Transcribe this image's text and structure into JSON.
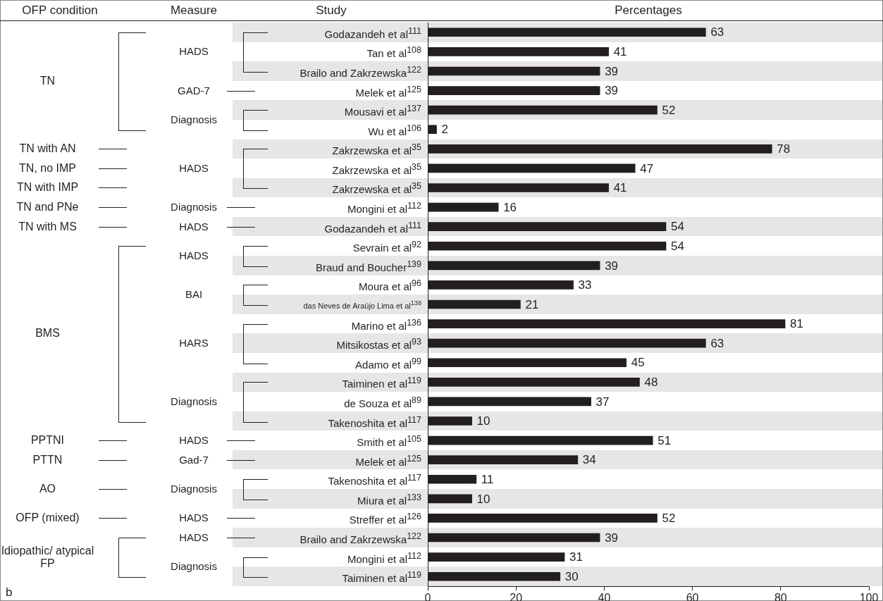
{
  "chart_data": {
    "type": "bar",
    "orientation": "horizontal",
    "xlabel": "Percentages",
    "categories": [
      "Godazandeh et al$^{111}$",
      "Tan et al$^{108}$",
      "Brailo and Zakrzewska$^{122}$",
      "Melek et al$^{125}$",
      "Mousavi et al$^{137}$",
      "Wu et al$^{106}$",
      "Zakrzewska et al$^{35}$",
      "Zakrzewska et al$^{35}$",
      "Zakrzewska et al$^{35}$",
      "Mongini et al$^{112}$",
      "Godazandeh et al$^{111}$",
      "Sevrain et al$^{92}$",
      "Braud and Boucher$^{139}$",
      "Moura et al$^{96}$",
      "das Neves de Araújo Lima et al$^{138}$",
      "Marino et al$^{136}$",
      "Mitsikostas et al$^{93}$",
      "Adamo et al$^{99}$",
      "Taiminen et al$^{119}$",
      "de Souza et al$^{89}$",
      "Takenoshita et al$^{117}$",
      "Smith et al$^{105}$",
      "Melek et al$^{125}$",
      "Takenoshita et al$^{117}$",
      "Miura et al$^{133}$",
      "Streffer et al$^{126}$",
      "Brailo and Zakrzewska$^{122}$",
      "Mongini et al$^{112}$",
      "Taiminen et al$^{119}$"
    ],
    "values": [
      63,
      41,
      39,
      39,
      52,
      2,
      78,
      47,
      41,
      16,
      54,
      54,
      39,
      33,
      21,
      81,
      63,
      45,
      48,
      37,
      10,
      51,
      34,
      11,
      10,
      52,
      39,
      31,
      30
    ],
    "color": "#231f20",
    "xlim": [
      0,
      100
    ],
    "xticks": [
      0,
      20,
      40,
      60,
      80,
      100
    ],
    "data_labels": true,
    "annotations": [
      "OFP condition",
      "Measure",
      "Study",
      "TN",
      "TN with AN",
      "TN, no IMP",
      "TN with IMP",
      "TN and PNe",
      "TN with MS",
      "BMS",
      "PPTNI",
      "PTTN",
      "AO",
      "OFP (mixed)",
      "Idiopathic/ atypical FP",
      "HADS",
      "GAD-7",
      "Diagnosis",
      "HADS",
      "Diagnosis",
      "HADS",
      "HADS",
      "BAI",
      "HARS",
      "Diagnosis",
      "HADS",
      "Gad-7",
      "Diagnosis",
      "HADS",
      "HADS",
      "Diagnosis",
      "b"
    ]
  }
}
